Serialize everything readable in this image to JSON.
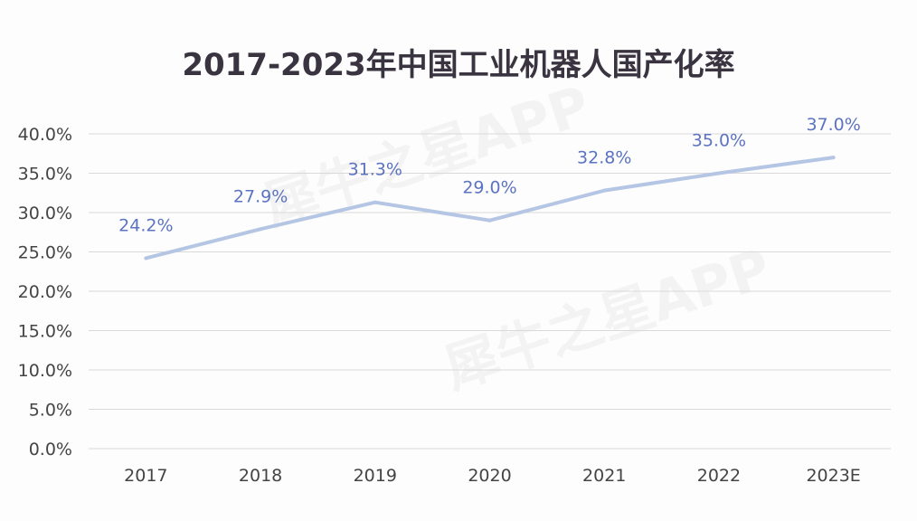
{
  "chart_data": {
    "type": "line",
    "title": "2017-2023年中国工业机器人国产化率",
    "xlabel": "",
    "ylabel": "",
    "categories": [
      "2017",
      "2018",
      "2019",
      "2020",
      "2021",
      "2022",
      "2023E"
    ],
    "series": [
      {
        "name": "国产化率",
        "values": [
          24.2,
          27.9,
          31.3,
          29.0,
          32.8,
          35.0,
          37.0
        ]
      }
    ],
    "data_labels": [
      "24.2%",
      "27.9%",
      "31.3%",
      "29.0%",
      "32.8%",
      "35.0%",
      "37.0%"
    ],
    "ylim": [
      0,
      40
    ],
    "yticks": [
      "0.0%",
      "5.0%",
      "10.0%",
      "15.0%",
      "20.0%",
      "25.0%",
      "30.0%",
      "35.0%",
      "40.0%"
    ],
    "grid": true,
    "legend": "none",
    "colors": {
      "line": "#b4c6e4",
      "label": "#5b73c0",
      "grid": "#d9d9d9"
    },
    "watermark": "犀牛之星APP"
  }
}
